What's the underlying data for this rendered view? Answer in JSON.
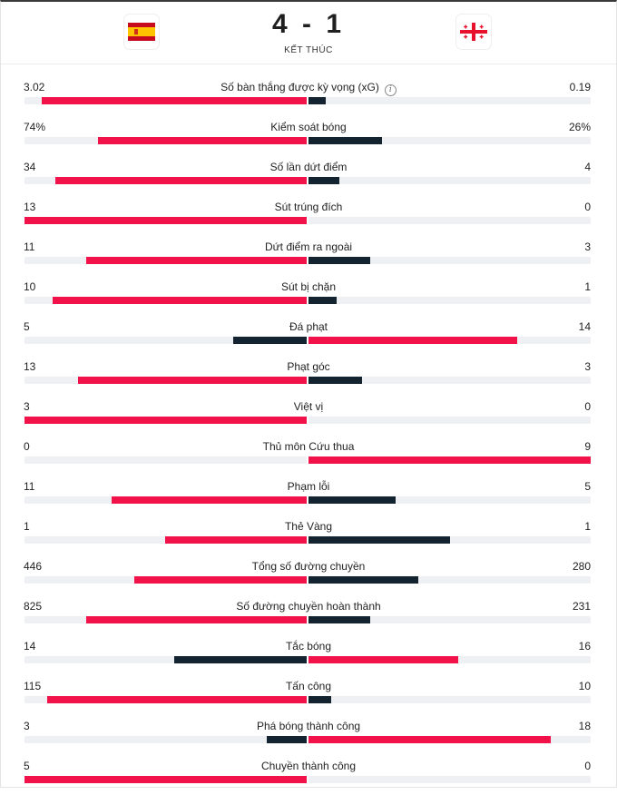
{
  "match": {
    "score": "4 - 1",
    "status": "KẾT THÚC",
    "home_flag_icon": "spain-flag-icon",
    "away_flag_icon": "georgia-flag-icon"
  },
  "colors": {
    "leader": "#f2124a",
    "trailer": "#142330",
    "track": "#eef0f3"
  },
  "stats": [
    {
      "label": "Số bàn thắng được kỳ vọng (xG)",
      "home": "3.02",
      "away": "0.19",
      "home_share": 0.94,
      "away_share": 0.06,
      "info": true
    },
    {
      "label": "Kiểm soát bóng",
      "home": "74%",
      "away": "26%",
      "home_share": 0.74,
      "away_share": 0.26
    },
    {
      "label": "Số lần dứt điểm",
      "home": "34",
      "away": "4",
      "home_share": 0.89,
      "away_share": 0.11
    },
    {
      "label": "Sút trúng đích",
      "home": "13",
      "away": "0",
      "home_share": 1.0,
      "away_share": 0.0
    },
    {
      "label": "Dứt điểm ra ngoài",
      "home": "11",
      "away": "3",
      "home_share": 0.78,
      "away_share": 0.22
    },
    {
      "label": "Sút bị chặn",
      "home": "10",
      "away": "1",
      "home_share": 0.9,
      "away_share": 0.1
    },
    {
      "label": "Đá phạt",
      "home": "5",
      "away": "14",
      "home_share": 0.26,
      "away_share": 0.74
    },
    {
      "label": "Phạt góc",
      "home": "13",
      "away": "3",
      "home_share": 0.81,
      "away_share": 0.19
    },
    {
      "label": "Việt vị",
      "home": "3",
      "away": "0",
      "home_share": 1.0,
      "away_share": 0.0
    },
    {
      "label": "Thủ môn Cứu thua",
      "home": "0",
      "away": "9",
      "home_share": 0.0,
      "away_share": 1.0
    },
    {
      "label": "Phạm lỗi",
      "home": "11",
      "away": "5",
      "home_share": 0.69,
      "away_share": 0.31
    },
    {
      "label": "Thẻ Vàng",
      "home": "1",
      "away": "1",
      "home_share": 0.5,
      "away_share": 0.5
    },
    {
      "label": "Tổng số đường chuyền",
      "home": "446",
      "away": "280",
      "home_share": 0.61,
      "away_share": 0.39
    },
    {
      "label": "Số đường chuyền hoàn thành",
      "home": "825",
      "away": "231",
      "home_share": 0.78,
      "away_share": 0.22
    },
    {
      "label": "Tắc bóng",
      "home": "14",
      "away": "16",
      "home_share": 0.47,
      "away_share": 0.53
    },
    {
      "label": "Tấn công",
      "home": "115",
      "away": "10",
      "home_share": 0.92,
      "away_share": 0.08
    },
    {
      "label": "Phá bóng thành công",
      "home": "3",
      "away": "18",
      "home_share": 0.14,
      "away_share": 0.86
    },
    {
      "label": "Chuyền thành công",
      "home": "5",
      "away": "0",
      "home_share": 1.0,
      "away_share": 0.0
    }
  ]
}
